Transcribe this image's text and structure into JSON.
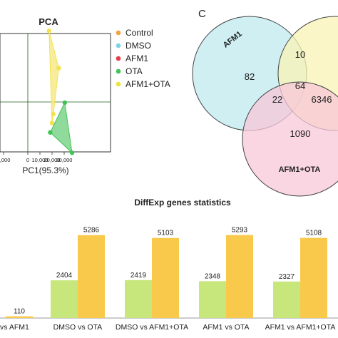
{
  "pca": {
    "title": "PCA",
    "xlabel": "PC1(95.3%)",
    "x_ticks": [
      "0,000",
      "0",
      "10,000",
      "20,000",
      "30,000"
    ],
    "legend": [
      {
        "label": "Control",
        "color": "#f4a340"
      },
      {
        "label": "DMSO",
        "color": "#7fd3e6"
      },
      {
        "label": "AFM1",
        "color": "#e8404a"
      },
      {
        "label": "OTA",
        "color": "#3fc456"
      },
      {
        "label": "AFM1+OTA",
        "color": "#e9e63a"
      }
    ],
    "groups": [
      {
        "name": "AFM1+OTA",
        "color": "#f2e34d",
        "fill": "#f6ea8a",
        "points": [
          [
            17500,
            105000
          ],
          [
            25500,
            50000
          ],
          [
            21000,
            -18000
          ],
          [
            20000,
            -31000
          ]
        ]
      },
      {
        "name": "OTA",
        "color": "#3fc456",
        "fill": "#7dd48a",
        "points": [
          [
            30500,
            -1000
          ],
          [
            18500,
            -45000
          ],
          [
            36500,
            -75000
          ]
        ]
      }
    ]
  },
  "venn": {
    "panel_label": "C",
    "sets": [
      {
        "label": "AFM1",
        "color": "#bfe9ef"
      },
      {
        "label": "",
        "color": "#f8f3b6"
      },
      {
        "label": "AFM1+OTA",
        "color": "#f8c7d8"
      }
    ],
    "regions": {
      "a_only": "82",
      "ab": "10",
      "abc": "64",
      "ac": "22",
      "bc": "6346",
      "c_only": "1090"
    }
  },
  "chart_data": {
    "type": "bar",
    "title": "DiffExp genes statistics",
    "categories": [
      "vs AFM1",
      "DMSO vs OTA",
      "DMSO vs AFM1+OTA",
      "AFM1 vs OTA",
      "AFM1 vs AFM1+OTA"
    ],
    "series": [
      {
        "color": "#c7e67b",
        "values": [
          null,
          2404,
          2419,
          2348,
          2327
        ]
      },
      {
        "color": "#f8c94b",
        "values": [
          110,
          5286,
          5103,
          5293,
          5108
        ]
      }
    ],
    "ylim": [
      0,
      5600
    ]
  }
}
